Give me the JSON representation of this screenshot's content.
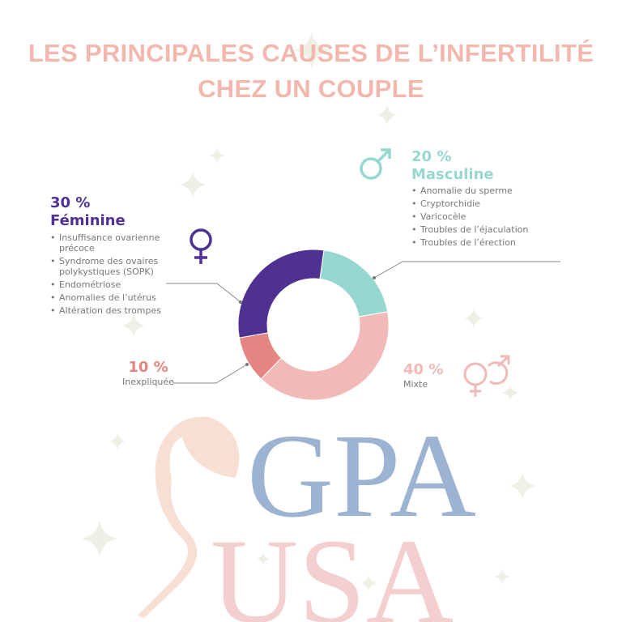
{
  "title": {
    "line1": "LES PRINCIPALES CAUSES DE L’INFERTILITÉ",
    "line2": "CHEZ UN COUPLE"
  },
  "colors": {
    "title": "#f2b8ad",
    "feminine": "#4f3192",
    "masculine": "#96d8d0",
    "mixte": "#f1b9b8",
    "inexpliquee": "#e38580",
    "logo_blue": "#9cb4d1",
    "logo_pink": "#f3cfd0",
    "logo_peach": "#f7dfd4"
  },
  "feminine": {
    "pct": "30 %",
    "label": "Féminine",
    "icon": "female-symbol-icon",
    "items": [
      "Insuffisance ovarienne précoce",
      "Syndrome des ovaires polykystiques (SOPK)",
      "Endométriose",
      "Anomalies de l’utérus",
      "Altération des trompes"
    ]
  },
  "masculine": {
    "pct": "20 %",
    "label": "Masculine",
    "icon": "male-symbol-icon",
    "items": [
      "Anomalie du sperme",
      "Cryptorchidie",
      "Varicocèle",
      "Troubles de l’éjaculation",
      "Troubles de l’érection"
    ]
  },
  "inexpliquee": {
    "pct": "10 %",
    "label": "Inexpliquée"
  },
  "mixte": {
    "pct": "40 %",
    "label": "Mixte",
    "icon": "female-male-symbol-icon"
  },
  "logo": {
    "line1": "GPA",
    "line2": "USA"
  },
  "chart_data": {
    "type": "pie",
    "donut": true,
    "categories": [
      "Masculine",
      "Mixte",
      "Inexpliquée",
      "Féminine"
    ],
    "values": [
      20,
      40,
      10,
      30
    ],
    "colors": [
      "#96d8d0",
      "#f1b9b8",
      "#e38580",
      "#4f3192"
    ]
  }
}
